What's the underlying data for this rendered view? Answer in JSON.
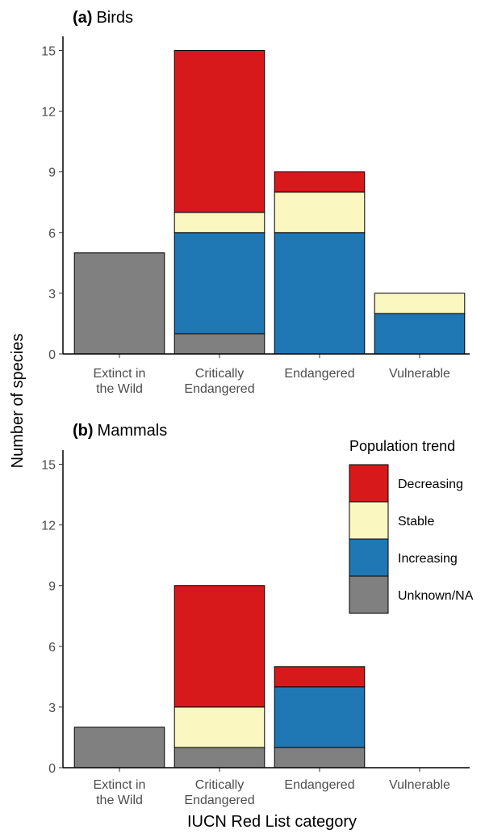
{
  "figure": {
    "ylabel": "Number of species",
    "xlabel": "IUCN Red List category",
    "legend": {
      "title": "Population trend",
      "placement": "right side of panel (b)"
    }
  },
  "colors": {
    "Decreasing": "#d7191c",
    "Stable": "#faf7c0",
    "Increasing": "#1f78b4",
    "Unknown/NA": "#808080"
  },
  "chart_data": [
    {
      "type": "bar",
      "stacked": true,
      "panel_tag": "(a)",
      "title": "Birds",
      "categories": [
        [
          "Extinct in",
          "the Wild"
        ],
        [
          "Critically",
          "Endangered"
        ],
        [
          "Endangered"
        ],
        [
          "Vulnerable"
        ]
      ],
      "series": [
        {
          "name": "Unknown/NA",
          "values": [
            5,
            1,
            0,
            0
          ]
        },
        {
          "name": "Increasing",
          "values": [
            0,
            5,
            6,
            2
          ]
        },
        {
          "name": "Stable",
          "values": [
            0,
            1,
            2,
            1
          ]
        },
        {
          "name": "Decreasing",
          "values": [
            0,
            8,
            1,
            0
          ]
        }
      ],
      "yticks": [
        0,
        3,
        6,
        9,
        12,
        15
      ],
      "ylim": [
        0,
        15.7
      ],
      "grid": false
    },
    {
      "type": "bar",
      "stacked": true,
      "panel_tag": "(b)",
      "title": "Mammals",
      "categories": [
        [
          "Extinct in",
          "the Wild"
        ],
        [
          "Critically",
          "Endangered"
        ],
        [
          "Endangered"
        ],
        [
          "Vulnerable"
        ]
      ],
      "series": [
        {
          "name": "Unknown/NA",
          "values": [
            2,
            1,
            1,
            0
          ]
        },
        {
          "name": "Increasing",
          "values": [
            0,
            0,
            3,
            0
          ]
        },
        {
          "name": "Stable",
          "values": [
            0,
            2,
            0,
            0
          ]
        },
        {
          "name": "Decreasing",
          "values": [
            0,
            6,
            1,
            0
          ]
        }
      ],
      "yticks": [
        0,
        3,
        6,
        9,
        12,
        15
      ],
      "ylim": [
        0,
        15.7
      ],
      "grid": false
    }
  ]
}
